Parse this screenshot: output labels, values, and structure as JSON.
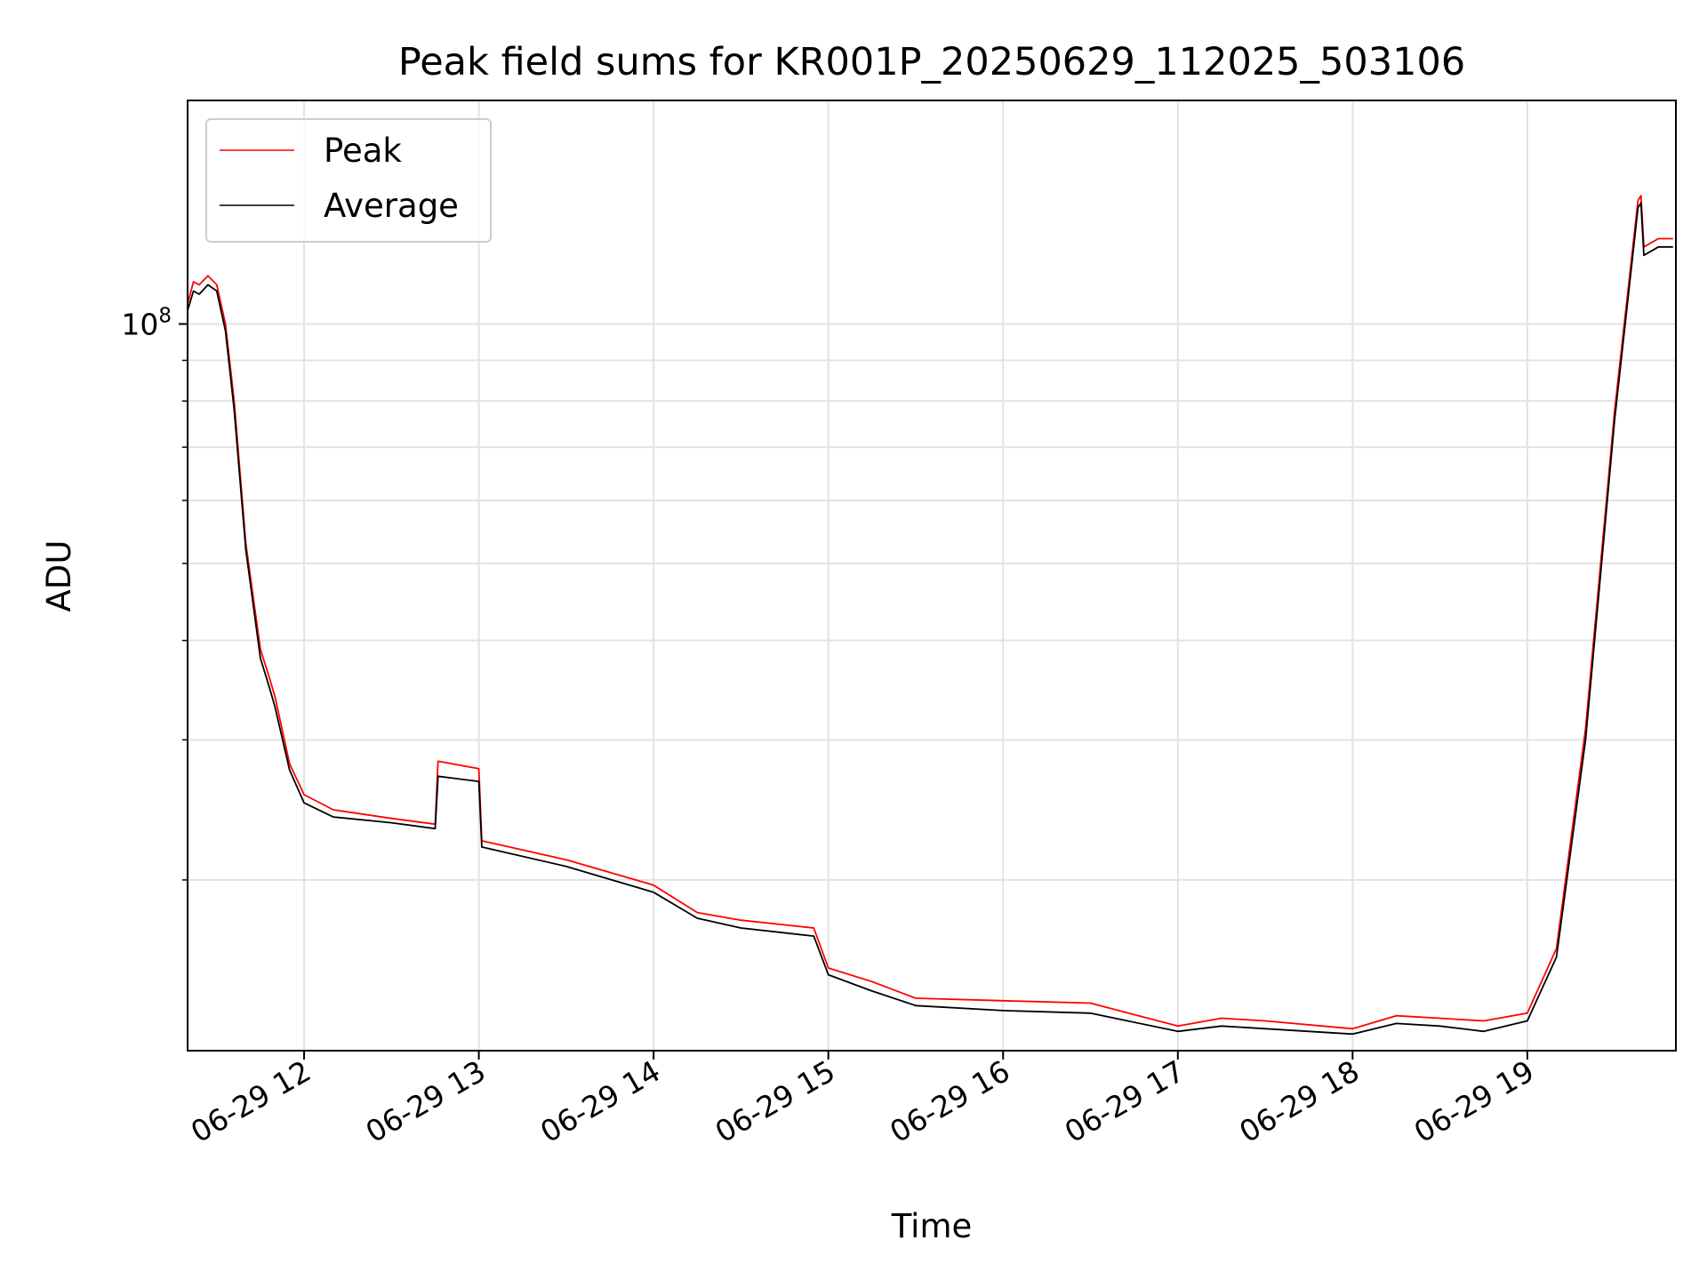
{
  "chart_data": {
    "type": "line",
    "title": "Peak field sums for KR001P_20250629_112025_503106",
    "xlabel": "Time",
    "ylabel": "ADU",
    "x_range": [
      "2025-06-29 11:20",
      "2025-06-29 19:51"
    ],
    "x_ticks": [
      {
        "label": "06-29 12",
        "value": "2025-06-29 12:00"
      },
      {
        "label": "06-29 13",
        "value": "2025-06-29 13:00"
      },
      {
        "label": "06-29 14",
        "value": "2025-06-29 14:00"
      },
      {
        "label": "06-29 15",
        "value": "2025-06-29 15:00"
      },
      {
        "label": "06-29 16",
        "value": "2025-06-29 16:00"
      },
      {
        "label": "06-29 17",
        "value": "2025-06-29 17:00"
      },
      {
        "label": "06-29 18",
        "value": "2025-06-29 18:00"
      },
      {
        "label": "06-29 19",
        "value": "2025-06-29 19:00"
      }
    ],
    "y_scale": "log",
    "y_range": [
      12200000,
      191000000
    ],
    "y_ticks": [
      {
        "label_base": "10",
        "label_exp": "8",
        "value": 100000000
      }
    ],
    "y_minor_ticks": [
      20000000,
      30000000,
      40000000,
      50000000,
      60000000,
      70000000,
      80000000,
      90000000
    ],
    "grid": true,
    "legend_position": "upper-left",
    "series": [
      {
        "name": "Peak",
        "color": "#ff0000",
        "x": [
          "2025-06-29 11:20",
          "2025-06-29 11:22",
          "2025-06-29 11:24",
          "2025-06-29 11:27",
          "2025-06-29 11:30",
          "2025-06-29 11:33",
          "2025-06-29 11:36",
          "2025-06-29 11:40",
          "2025-06-29 11:45",
          "2025-06-29 11:48",
          "2025-06-29 11:50",
          "2025-06-29 11:55",
          "2025-06-29 12:00",
          "2025-06-29 12:10",
          "2025-06-29 12:30",
          "2025-06-29 12:45",
          "2025-06-29 12:46",
          "2025-06-29 13:00",
          "2025-06-29 13:01",
          "2025-06-29 13:30",
          "2025-06-29 14:00",
          "2025-06-29 14:15",
          "2025-06-29 14:30",
          "2025-06-29 14:55",
          "2025-06-29 15:00",
          "2025-06-29 15:15",
          "2025-06-29 15:30",
          "2025-06-29 16:00",
          "2025-06-29 16:30",
          "2025-06-29 17:00",
          "2025-06-29 17:15",
          "2025-06-29 17:30",
          "2025-06-29 18:00",
          "2025-06-29 18:15",
          "2025-06-29 18:30",
          "2025-06-29 18:45",
          "2025-06-29 19:00",
          "2025-06-29 19:10",
          "2025-06-29 19:20",
          "2025-06-29 19:30",
          "2025-06-29 19:38",
          "2025-06-29 19:39",
          "2025-06-29 19:40",
          "2025-06-29 19:45",
          "2025-06-29 19:50"
        ],
        "y": [
          106000000,
          113000000,
          112000000,
          115000000,
          112000000,
          100000000,
          80000000,
          53000000,
          39000000,
          36000000,
          34000000,
          28000000,
          25600000,
          24500000,
          23900000,
          23500000,
          28200000,
          27600000,
          22400000,
          21200000,
          19700000,
          18200000,
          17800000,
          17400000,
          15500000,
          14900000,
          14200000,
          14100000,
          14000000,
          13100000,
          13400000,
          13300000,
          13000000,
          13500000,
          13400000,
          13300000,
          13600000,
          16400000,
          31000000,
          78000000,
          143000000,
          145000000,
          125000000,
          128000000,
          128000000
        ]
      },
      {
        "name": "Average",
        "color": "#000000",
        "x": [
          "2025-06-29 11:20",
          "2025-06-29 11:22",
          "2025-06-29 11:24",
          "2025-06-29 11:27",
          "2025-06-29 11:30",
          "2025-06-29 11:33",
          "2025-06-29 11:36",
          "2025-06-29 11:40",
          "2025-06-29 11:45",
          "2025-06-29 11:48",
          "2025-06-29 11:50",
          "2025-06-29 11:55",
          "2025-06-29 12:00",
          "2025-06-29 12:10",
          "2025-06-29 12:30",
          "2025-06-29 12:45",
          "2025-06-29 12:46",
          "2025-06-29 13:00",
          "2025-06-29 13:01",
          "2025-06-29 13:30",
          "2025-06-29 14:00",
          "2025-06-29 14:15",
          "2025-06-29 14:30",
          "2025-06-29 14:55",
          "2025-06-29 15:00",
          "2025-06-29 15:15",
          "2025-06-29 15:30",
          "2025-06-29 16:00",
          "2025-06-29 16:30",
          "2025-06-29 17:00",
          "2025-06-29 17:15",
          "2025-06-29 17:30",
          "2025-06-29 18:00",
          "2025-06-29 18:15",
          "2025-06-29 18:30",
          "2025-06-29 18:45",
          "2025-06-29 19:00",
          "2025-06-29 19:10",
          "2025-06-29 19:20",
          "2025-06-29 19:30",
          "2025-06-29 19:38",
          "2025-06-29 19:39",
          "2025-06-29 19:40",
          "2025-06-29 19:45",
          "2025-06-29 19:50"
        ],
        "y": [
          104000000,
          110000000,
          109000000,
          112000000,
          110000000,
          98000000,
          78000000,
          52000000,
          38000000,
          35000000,
          33000000,
          27500000,
          25000000,
          24000000,
          23600000,
          23200000,
          27000000,
          26600000,
          22000000,
          20800000,
          19300000,
          17900000,
          17400000,
          17000000,
          15200000,
          14500000,
          13900000,
          13700000,
          13600000,
          12900000,
          13100000,
          13000000,
          12800000,
          13200000,
          13100000,
          12900000,
          13300000,
          16000000,
          30000000,
          76000000,
          140000000,
          142000000,
          122000000,
          125000000,
          125000000
        ]
      }
    ]
  }
}
